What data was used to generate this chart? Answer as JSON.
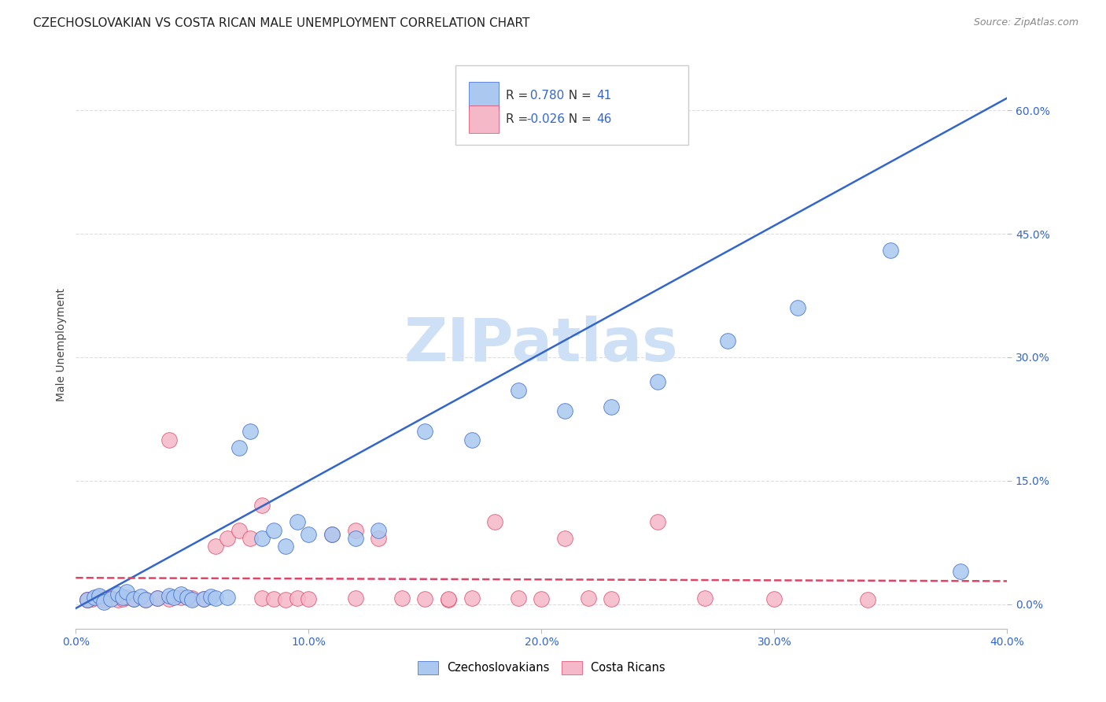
{
  "title": "CZECHOSLOVAKIAN VS COSTA RICAN MALE UNEMPLOYMENT CORRELATION CHART",
  "source": "Source: ZipAtlas.com",
  "ylabel": "Male Unemployment",
  "x_tick_labels": [
    "0.0%",
    "10.0%",
    "20.0%",
    "30.0%",
    "40.0%"
  ],
  "x_tick_values": [
    0.0,
    0.1,
    0.2,
    0.3,
    0.4
  ],
  "y_tick_labels_right": [
    "0.0%",
    "15.0%",
    "30.0%",
    "45.0%",
    "60.0%"
  ],
  "y_tick_values": [
    0.0,
    0.15,
    0.3,
    0.45,
    0.6
  ],
  "xlim": [
    0.0,
    0.4
  ],
  "ylim": [
    -0.03,
    0.66
  ],
  "blue_R": 0.78,
  "blue_N": 41,
  "pink_R": -0.026,
  "pink_N": 46,
  "blue_color": "#aac8f0",
  "pink_color": "#f5b8c8",
  "blue_line_color": "#3366cc",
  "pink_line_color": "#dd4466",
  "blue_scatter_x": [
    0.005,
    0.008,
    0.01,
    0.012,
    0.015,
    0.018,
    0.02,
    0.022,
    0.025,
    0.028,
    0.03,
    0.035,
    0.04,
    0.042,
    0.045,
    0.048,
    0.05,
    0.055,
    0.058,
    0.06,
    0.065,
    0.07,
    0.075,
    0.08,
    0.085,
    0.09,
    0.095,
    0.1,
    0.11,
    0.12,
    0.13,
    0.15,
    0.17,
    0.19,
    0.21,
    0.23,
    0.25,
    0.28,
    0.31,
    0.35,
    0.38
  ],
  "blue_scatter_y": [
    0.005,
    0.008,
    0.01,
    0.003,
    0.006,
    0.012,
    0.008,
    0.015,
    0.006,
    0.009,
    0.005,
    0.007,
    0.01,
    0.008,
    0.012,
    0.008,
    0.005,
    0.006,
    0.009,
    0.007,
    0.008,
    0.19,
    0.21,
    0.08,
    0.09,
    0.07,
    0.1,
    0.085,
    0.085,
    0.08,
    0.09,
    0.21,
    0.2,
    0.26,
    0.235,
    0.24,
    0.27,
    0.32,
    0.36,
    0.43,
    0.04
  ],
  "pink_scatter_x": [
    0.005,
    0.007,
    0.01,
    0.012,
    0.015,
    0.018,
    0.02,
    0.022,
    0.025,
    0.03,
    0.035,
    0.04,
    0.045,
    0.05,
    0.055,
    0.06,
    0.065,
    0.07,
    0.075,
    0.08,
    0.085,
    0.09,
    0.095,
    0.1,
    0.11,
    0.12,
    0.13,
    0.14,
    0.15,
    0.16,
    0.17,
    0.18,
    0.19,
    0.2,
    0.21,
    0.22,
    0.23,
    0.25,
    0.27,
    0.3,
    0.04,
    0.08,
    0.12,
    0.16,
    0.34,
    0.005
  ],
  "pink_scatter_y": [
    0.005,
    0.006,
    0.008,
    0.005,
    0.007,
    0.005,
    0.006,
    0.008,
    0.006,
    0.005,
    0.007,
    0.006,
    0.008,
    0.007,
    0.006,
    0.07,
    0.08,
    0.09,
    0.08,
    0.007,
    0.006,
    0.005,
    0.007,
    0.006,
    0.085,
    0.09,
    0.08,
    0.007,
    0.006,
    0.005,
    0.007,
    0.1,
    0.007,
    0.006,
    0.08,
    0.007,
    0.006,
    0.1,
    0.007,
    0.006,
    0.2,
    0.12,
    0.007,
    0.006,
    0.005,
    0.005
  ],
  "watermark_text": "ZIPatlas",
  "watermark_color": "#cde0f5",
  "legend_label_blue": "Czechoslovakians",
  "legend_label_pink": "Costa Ricans",
  "grid_color": "#dddddd",
  "background_color": "#ffffff",
  "title_fontsize": 11,
  "axis_label_fontsize": 10,
  "tick_fontsize": 10,
  "blue_line_slope": 1.55,
  "blue_line_intercept": -0.005,
  "pink_line_slope": -0.01,
  "pink_line_intercept": 0.032
}
